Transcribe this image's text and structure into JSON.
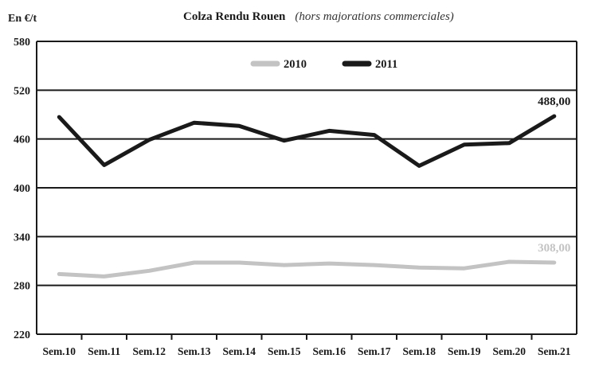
{
  "chart_data": {
    "type": "line",
    "title": "Colza Rendu Rouen",
    "subtitle": "(hors majorations commerciales)",
    "ylabel": "En €/t",
    "ylim": [
      220,
      580
    ],
    "yticks": [
      220,
      280,
      340,
      400,
      460,
      520,
      580
    ],
    "categories": [
      "Sem.10",
      "Sem.11",
      "Sem.12",
      "Sem.13",
      "Sem.14",
      "Sem.15",
      "Sem.16",
      "Sem.17",
      "Sem.18",
      "Sem.19",
      "Sem.20",
      "Sem.21"
    ],
    "grid": true,
    "legend_position": "top-center",
    "series": [
      {
        "name": "2010",
        "color": "#c3c3c3",
        "values": [
          294,
          291,
          298,
          308,
          308,
          305,
          307,
          305,
          302,
          301,
          309,
          308
        ],
        "end_label": "308,00"
      },
      {
        "name": "2011",
        "color": "#1a1a1a",
        "values": [
          487,
          428,
          459,
          480,
          476,
          458,
          470,
          465,
          427,
          453,
          455,
          488
        ],
        "end_label": "488,00"
      }
    ]
  }
}
